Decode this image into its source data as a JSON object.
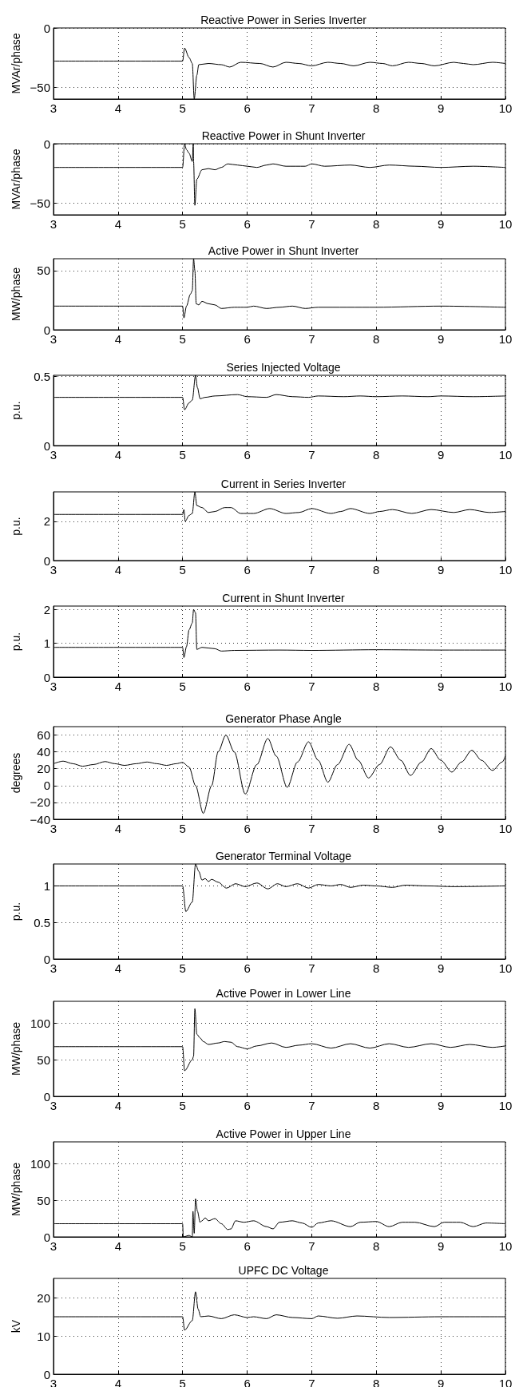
{
  "chart_data": [
    {
      "type": "line",
      "title": "Reactive Power in Series Inverter",
      "ylabel": "MVAr/phase",
      "xlim": [
        3,
        10
      ],
      "xticks": [
        3,
        4,
        5,
        6,
        7,
        8,
        9,
        10
      ],
      "ylim": [
        -60,
        0
      ],
      "yticks": [
        {
          "value": -50,
          "label": "−50"
        },
        0
      ],
      "grid": true,
      "x": [
        3,
        5,
        5.03,
        5.1,
        5.15,
        5.18,
        5.22,
        5.25,
        5.4,
        5.6,
        5.73,
        5.9,
        6.2,
        6.4,
        6.6,
        6.8,
        7,
        7.25,
        7.45,
        7.65,
        7.9,
        8.1,
        8.25,
        8.5,
        8.7,
        8.9,
        9.2,
        9.35,
        9.5,
        9.8,
        10
      ],
      "series": [
        {
          "color": "#000000",
          "values": [
            -28,
            -28,
            -17,
            -25,
            -30,
            -60,
            -40,
            -31,
            -30,
            -31,
            -33,
            -29,
            -30,
            -33,
            -29,
            -30,
            -32,
            -29,
            -30,
            -32,
            -29,
            -30,
            -32,
            -29,
            -30,
            -32,
            -29,
            -30,
            -31,
            -29,
            -30
          ]
        }
      ]
    },
    {
      "type": "line",
      "title": "Reactive Power in Shunt Inverter",
      "ylabel": "MVAr/phase",
      "xlim": [
        3,
        10
      ],
      "xticks": [
        3,
        4,
        5,
        6,
        7,
        8,
        9,
        10
      ],
      "ylim": [
        -60,
        0
      ],
      "yticks": [
        {
          "value": -50,
          "label": "−50"
        },
        0
      ],
      "grid": true,
      "x": [
        3,
        5,
        5.03,
        5.06,
        5.1,
        5.15,
        5.165,
        5.17,
        5.19,
        5.22,
        5.3,
        5.4,
        5.5,
        5.6,
        5.7,
        5.85,
        6,
        6.15,
        6.3,
        6.4,
        6.6,
        6.9,
        7,
        7.2,
        7.6,
        7.9,
        8.2,
        8.6,
        9,
        9.5,
        10
      ],
      "series": [
        {
          "color": "#000000",
          "values": [
            -20,
            -20,
            0,
            -5,
            -8,
            -15,
            0,
            -15,
            -52,
            -30,
            -22,
            -21,
            -22,
            -20,
            -17,
            -18,
            -19,
            -20,
            -18,
            -17,
            -19,
            -19,
            -17,
            -19,
            -18,
            -20,
            -18,
            -19,
            -20,
            -19,
            -20
          ]
        }
      ]
    },
    {
      "type": "line",
      "title": "Active Power in Shunt Inverter",
      "ylabel": "MW/phase",
      "xlim": [
        3,
        10
      ],
      "xticks": [
        3,
        4,
        5,
        6,
        7,
        8,
        9,
        10
      ],
      "ylim": [
        0,
        60
      ],
      "yticks": [
        0,
        50
      ],
      "grid": true,
      "x": [
        3,
        5,
        5.02,
        5.06,
        5.12,
        5.15,
        5.17,
        5.19,
        5.21,
        5.25,
        5.3,
        5.4,
        5.5,
        5.6,
        5.8,
        6,
        6.1,
        6.3,
        6.5,
        6.7,
        6.9,
        7.1,
        8,
        9,
        10
      ],
      "series": [
        {
          "color": "#000000",
          "values": [
            20,
            20,
            10,
            20,
            30,
            33,
            60,
            50,
            22,
            21,
            24,
            22,
            21,
            18,
            19,
            19,
            20,
            18,
            19,
            20,
            18,
            19,
            19,
            20,
            19
          ]
        }
      ]
    },
    {
      "type": "line",
      "title": "Series Injected Voltage",
      "ylabel": "p.u.",
      "xlim": [
        3,
        10
      ],
      "xticks": [
        3,
        4,
        5,
        6,
        7,
        8,
        9,
        10
      ],
      "ylim": [
        0,
        0.51
      ],
      "yticks": [
        0,
        0.5
      ],
      "grid": true,
      "x": [
        3,
        5,
        5.03,
        5.1,
        5.15,
        5.2,
        5.23,
        5.27,
        5.35,
        5.5,
        5.85,
        6,
        6.3,
        6.45,
        6.7,
        6.95,
        7.1,
        7.5,
        7.75,
        8,
        8.4,
        8.8,
        9,
        9.5,
        10
      ],
      "series": [
        {
          "color": "#000000",
          "values": [
            0.35,
            0.35,
            0.26,
            0.31,
            0.33,
            0.51,
            0.42,
            0.34,
            0.35,
            0.36,
            0.37,
            0.355,
            0.35,
            0.37,
            0.355,
            0.35,
            0.36,
            0.355,
            0.36,
            0.355,
            0.36,
            0.355,
            0.36,
            0.355,
            0.36
          ]
        }
      ]
    },
    {
      "type": "line",
      "title": "Current in Series Inverter",
      "ylabel": "p.u.",
      "xlim": [
        3,
        10
      ],
      "xticks": [
        3,
        4,
        5,
        6,
        7,
        8,
        9,
        10
      ],
      "ylim": [
        0,
        3.5
      ],
      "yticks": [
        0,
        2
      ],
      "grid": true,
      "x": [
        3,
        5,
        5.02,
        5.04,
        5.1,
        5.15,
        5.19,
        5.22,
        5.3,
        5.4,
        5.5,
        5.65,
        5.75,
        5.9,
        6.1,
        6.35,
        6.6,
        6.8,
        7,
        7.3,
        7.45,
        7.6,
        7.9,
        8.05,
        8.25,
        8.55,
        8.85,
        9.2,
        9.45,
        9.75,
        10
      ],
      "series": [
        {
          "color": "#000000",
          "values": [
            2.35,
            2.35,
            2.6,
            2,
            2.3,
            2.4,
            3.5,
            2.8,
            2.7,
            2.45,
            2.5,
            2.7,
            2.7,
            2.4,
            2.4,
            2.65,
            2.4,
            2.45,
            2.65,
            2.4,
            2.5,
            2.65,
            2.4,
            2.5,
            2.6,
            2.4,
            2.6,
            2.45,
            2.6,
            2.45,
            2.5
          ]
        }
      ]
    },
    {
      "type": "line",
      "title": "Current in Shunt Inverter",
      "ylabel": "p.u.",
      "xlim": [
        3,
        10
      ],
      "xticks": [
        3,
        4,
        5,
        6,
        7,
        8,
        9,
        10
      ],
      "ylim": [
        0,
        2.1
      ],
      "yticks": [
        0,
        1,
        2
      ],
      "grid": true,
      "x": [
        3,
        5,
        5.02,
        5.06,
        5.1,
        5.15,
        5.17,
        5.2,
        5.22,
        5.3,
        5.4,
        5.5,
        5.6,
        5.8,
        6.5,
        7,
        8,
        9,
        10
      ],
      "series": [
        {
          "color": "#000000",
          "values": [
            0.88,
            0.88,
            0.58,
            0.9,
            1.4,
            1.6,
            2,
            1.9,
            0.82,
            0.88,
            0.86,
            0.84,
            0.77,
            0.79,
            0.8,
            0.79,
            0.81,
            0.8,
            0.8
          ]
        }
      ]
    },
    {
      "type": "line",
      "title": "Generator Phase Angle",
      "ylabel": "degrees",
      "xlim": [
        3,
        10
      ],
      "xticks": [
        3,
        4,
        5,
        6,
        7,
        8,
        9,
        10
      ],
      "ylim": [
        -40,
        70
      ],
      "yticks": [
        {
          "value": -40,
          "label": "−40"
        },
        {
          "value": -20,
          "label": "−20"
        },
        0,
        20,
        40,
        60
      ],
      "grid": true,
      "x": [
        3,
        3.15,
        3.3,
        3.45,
        3.62,
        3.8,
        3.95,
        4.1,
        4.28,
        4.45,
        4.6,
        4.75,
        4.9,
        5,
        5.1,
        5.2,
        5.32,
        5.45,
        5.55,
        5.67,
        5.8,
        5.97,
        6.15,
        6.32,
        6.45,
        6.62,
        6.78,
        6.95,
        7.1,
        7.25,
        7.4,
        7.58,
        7.72,
        7.88,
        8.05,
        8.22,
        8.38,
        8.53,
        8.7,
        8.85,
        9,
        9.17,
        9.32,
        9.48,
        9.63,
        9.8,
        9.95,
        10
      ],
      "series": [
        {
          "color": "#000000",
          "values": [
            26,
            29,
            26,
            23,
            25,
            28.5,
            26,
            24,
            26,
            28,
            26,
            24,
            26,
            27.5,
            22,
            0,
            -33,
            0,
            40,
            60,
            40,
            -10,
            25,
            56,
            35,
            -2,
            28,
            52,
            30,
            4,
            25,
            49,
            30,
            9,
            25,
            46,
            30,
            12,
            28,
            44,
            30,
            16,
            28,
            42,
            30,
            18,
            28,
            35
          ]
        }
      ]
    },
    {
      "type": "line",
      "title": "Generator Terminal Voltage",
      "ylabel": "p.u.",
      "xlim": [
        3,
        10
      ],
      "xticks": [
        3,
        4,
        5,
        6,
        7,
        8,
        9,
        10
      ],
      "ylim": [
        0,
        1.3
      ],
      "yticks": [
        0,
        0.5,
        1
      ],
      "grid": true,
      "x": [
        3,
        5,
        5.05,
        5.15,
        5.2,
        5.25,
        5.3,
        5.35,
        5.4,
        5.45,
        5.55,
        5.68,
        5.82,
        5.97,
        6.15,
        6.32,
        6.47,
        6.6,
        6.78,
        6.95,
        7.1,
        7.3,
        7.45,
        7.6,
        7.8,
        8,
        8.25,
        8.45,
        8.8,
        9.2,
        10
      ],
      "series": [
        {
          "color": "#000000",
          "values": [
            1,
            1,
            0.65,
            0.78,
            1.3,
            1.2,
            1.08,
            1.1,
            1.06,
            1.09,
            1.05,
            0.97,
            1.03,
            0.99,
            1.04,
            0.96,
            1.03,
            0.99,
            1.03,
            0.97,
            1.02,
            1,
            1.02,
            0.98,
            1.01,
            1,
            0.98,
            1.01,
            1,
            0.99,
            1
          ]
        }
      ]
    },
    {
      "type": "line",
      "title": "Active Power in Lower Line",
      "ylabel": "MW/phase",
      "xlim": [
        3,
        10
      ],
      "xticks": [
        3,
        4,
        5,
        6,
        7,
        8,
        9,
        10
      ],
      "ylim": [
        0,
        130
      ],
      "yticks": [
        0,
        50,
        100
      ],
      "grid": true,
      "x": [
        3,
        5,
        5.03,
        5.15,
        5.17,
        5.19,
        5.22,
        5.27,
        5.32,
        5.4,
        5.55,
        5.65,
        5.75,
        5.85,
        6,
        6.15,
        6.38,
        6.6,
        6.8,
        7,
        7.3,
        7.6,
        7.9,
        8.2,
        8.5,
        8.85,
        9.15,
        9.45,
        9.8,
        10
      ],
      "series": [
        {
          "color": "#000000",
          "values": [
            68,
            68,
            35,
            50,
            55,
            120,
            85,
            80,
            75,
            71,
            73,
            75,
            74,
            68,
            65,
            69,
            73,
            67,
            70,
            72,
            66,
            72,
            66,
            72,
            67,
            72,
            67,
            71,
            67,
            69
          ]
        }
      ]
    },
    {
      "type": "line",
      "title": "Active Power in Upper Line",
      "ylabel": "MW/phase",
      "xlim": [
        3,
        10
      ],
      "xticks": [
        3,
        4,
        5,
        6,
        7,
        8,
        9,
        10
      ],
      "ylim": [
        0,
        130
      ],
      "yticks": [
        0,
        50,
        100
      ],
      "grid": true,
      "x": [
        3,
        5,
        5.01,
        5.1,
        5.15,
        5.16,
        5.18,
        5.2,
        5.23,
        5.27,
        5.3,
        5.35,
        5.4,
        5.5,
        5.6,
        5.7,
        5.75,
        5.82,
        5.95,
        6.1,
        6.3,
        6.4,
        6.5,
        6.7,
        6.85,
        7,
        7.1,
        7.3,
        7.6,
        7.75,
        8,
        8.2,
        8.4,
        8.6,
        8.9,
        9.05,
        9.3,
        9.5,
        9.7,
        10
      ],
      "series": [
        {
          "color": "#000000",
          "values": [
            18,
            18,
            0,
            2,
            0,
            35,
            5,
            52,
            35,
            20,
            22,
            26,
            22,
            25,
            18,
            10,
            11,
            22,
            20,
            22,
            14,
            11,
            20,
            22,
            19,
            13,
            19,
            22,
            14,
            20,
            21,
            14,
            20,
            20,
            14,
            20,
            20,
            14,
            19,
            18
          ]
        }
      ]
    },
    {
      "type": "line",
      "title": "UPFC DC Voltage",
      "ylabel": "kV",
      "xlim": [
        3,
        10
      ],
      "xticks": [
        3,
        4,
        5,
        6,
        7,
        8,
        9,
        10
      ],
      "ylim": [
        0,
        25
      ],
      "yticks": [
        0,
        10,
        20
      ],
      "grid": true,
      "x": [
        3,
        5,
        5.03,
        5.15,
        5.2,
        5.24,
        5.28,
        5.4,
        5.6,
        5.8,
        6,
        6.1,
        6.3,
        6.45,
        6.7,
        7,
        7.1,
        7.4,
        7.7,
        8.2,
        9,
        10
      ],
      "series": [
        {
          "color": "#000000",
          "values": [
            15,
            15,
            11.5,
            14,
            21.5,
            17,
            15,
            15.2,
            14.5,
            15.5,
            14.8,
            15,
            14.5,
            15.5,
            14.8,
            14.5,
            15.2,
            14.6,
            15.2,
            14.8,
            15,
            15
          ]
        }
      ]
    }
  ]
}
